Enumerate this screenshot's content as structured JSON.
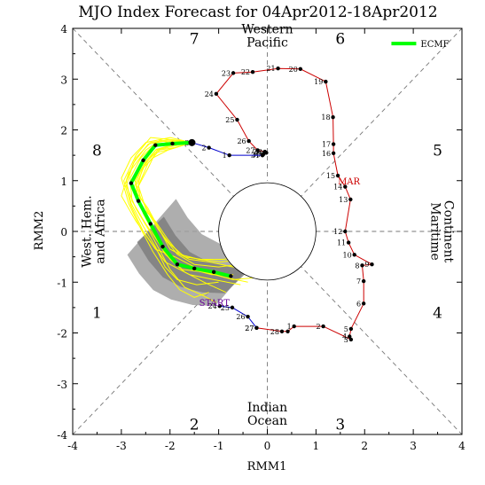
{
  "chart_data": {
    "type": "scatter",
    "title": "MJO Index Forecast for 04Apr2012-18Apr2012",
    "xlabel": "RMM1",
    "ylabel": "RMM2",
    "xlim": [
      -4,
      4
    ],
    "ylim": [
      -4,
      4
    ],
    "x_ticks": [
      "-4",
      "-3",
      "-2",
      "-1",
      "0",
      "1",
      "2",
      "3",
      "4"
    ],
    "y_ticks": [
      "-4",
      "-3",
      "-2",
      "-1",
      "0",
      "1",
      "2",
      "3",
      "4"
    ],
    "grid": false,
    "legend_position": "top-right",
    "legend": [
      {
        "name": "ECMF",
        "color": "#00ff00"
      }
    ],
    "phase_numbers": [
      {
        "label": "1",
        "x": -3.5,
        "y": -1.6
      },
      {
        "label": "2",
        "x": -1.5,
        "y": -3.8
      },
      {
        "label": "3",
        "x": 1.5,
        "y": -3.8
      },
      {
        "label": "4",
        "x": 3.5,
        "y": -1.6
      },
      {
        "label": "5",
        "x": 3.5,
        "y": 1.6
      },
      {
        "label": "6",
        "x": 1.5,
        "y": 3.8
      },
      {
        "label": "7",
        "x": -1.5,
        "y": 3.8
      },
      {
        "label": "8",
        "x": -3.5,
        "y": 1.6
      }
    ],
    "region_labels": [
      {
        "lines": [
          "Western",
          "Pacific"
        ],
        "x": 0.0,
        "y": 3.9,
        "orient": "h"
      },
      {
        "lines": [
          "Indian",
          "Ocean"
        ],
        "x": 0.0,
        "y": -3.55,
        "orient": "h"
      },
      {
        "lines": [
          "West. Hem.",
          "and Africa"
        ],
        "x": -3.5,
        "y": 0.0,
        "orient": "v-left"
      },
      {
        "lines": [
          "Maritime",
          "Continent"
        ],
        "x": 3.5,
        "y": 0.0,
        "orient": "v-right"
      }
    ],
    "month_labels": [
      {
        "text": "MAR",
        "x": 1.45,
        "y": 1.0,
        "color": "#cc0000"
      },
      {
        "text": "START",
        "x": -1.4,
        "y": -1.4,
        "color": "#660099"
      }
    ],
    "observed_track": {
      "color": "#cc0000",
      "points": [
        {
          "label": "27",
          "x": -0.22,
          "y": -1.9
        },
        {
          "label": "28",
          "x": 0.3,
          "y": -1.97
        },
        {
          "label": "",
          "x": 0.42,
          "y": -1.97
        },
        {
          "label": "1",
          "x": 0.55,
          "y": -1.87
        },
        {
          "label": "2",
          "x": 1.15,
          "y": -1.87
        },
        {
          "label": "3",
          "x": 1.72,
          "y": -2.13
        },
        {
          "label": "4",
          "x": 1.69,
          "y": -2.07
        },
        {
          "label": "5",
          "x": 1.72,
          "y": -1.92
        },
        {
          "label": "6",
          "x": 1.98,
          "y": -1.42
        },
        {
          "label": "7",
          "x": 1.98,
          "y": -0.98
        },
        {
          "label": "8",
          "x": 1.95,
          "y": -0.67
        },
        {
          "label": "9",
          "x": 2.15,
          "y": -0.65
        },
        {
          "label": "10",
          "x": 1.79,
          "y": -0.46
        },
        {
          "label": "11",
          "x": 1.67,
          "y": -0.22
        },
        {
          "label": "12",
          "x": 1.6,
          "y": 0.0
        },
        {
          "label": "13",
          "x": 1.71,
          "y": 0.63
        },
        {
          "label": "14",
          "x": 1.6,
          "y": 0.88
        },
        {
          "label": "15",
          "x": 1.45,
          "y": 1.1
        },
        {
          "label": "16",
          "x": 1.36,
          "y": 1.54
        },
        {
          "label": "17",
          "x": 1.36,
          "y": 1.72
        },
        {
          "label": "18",
          "x": 1.35,
          "y": 2.25
        },
        {
          "label": "19",
          "x": 1.2,
          "y": 2.95
        },
        {
          "label": "20",
          "x": 0.68,
          "y": 3.2
        },
        {
          "label": "21",
          "x": 0.22,
          "y": 3.21
        },
        {
          "label": "22",
          "x": -0.3,
          "y": 3.14
        },
        {
          "label": "23",
          "x": -0.7,
          "y": 3.12
        },
        {
          "label": "24",
          "x": -1.05,
          "y": 2.71
        },
        {
          "label": "25",
          "x": -0.62,
          "y": 2.2
        },
        {
          "label": "26",
          "x": -0.38,
          "y": 1.78
        },
        {
          "label": "27",
          "x": -0.2,
          "y": 1.6
        },
        {
          "label": "28",
          "x": -0.05,
          "y": 1.57
        },
        {
          "label": "29",
          "x": -0.02,
          "y": 1.55
        },
        {
          "label": "30",
          "x": -0.08,
          "y": 1.52
        },
        {
          "label": "31",
          "x": -0.1,
          "y": 1.5
        }
      ]
    },
    "forecast_link": {
      "color": "#0000cc",
      "points": [
        {
          "label": "",
          "x": -0.1,
          "y": 1.5
        },
        {
          "label": "1",
          "x": -0.78,
          "y": 1.5
        },
        {
          "label": "2",
          "x": -1.2,
          "y": 1.65
        },
        {
          "label": "3",
          "x": -1.55,
          "y": 1.75
        }
      ]
    },
    "start_link": {
      "color": "#0000cc",
      "points": [
        {
          "label": "24",
          "x": -0.98,
          "y": -1.47
        },
        {
          "label": "25",
          "x": -0.72,
          "y": -1.5
        },
        {
          "label": "26",
          "x": -0.4,
          "y": -1.68
        },
        {
          "label": "27",
          "x": -0.22,
          "y": -1.9
        }
      ]
    },
    "ensemble_mean": {
      "name": "ECMF",
      "color": "#00ff00",
      "points": [
        {
          "x": -1.55,
          "y": 1.75
        },
        {
          "x": -1.95,
          "y": 1.73
        },
        {
          "x": -2.3,
          "y": 1.7
        },
        {
          "x": -2.55,
          "y": 1.4
        },
        {
          "x": -2.8,
          "y": 0.95
        },
        {
          "x": -2.65,
          "y": 0.6
        },
        {
          "x": -2.4,
          "y": 0.15
        },
        {
          "x": -2.15,
          "y": -0.3
        },
        {
          "x": -1.85,
          "y": -0.65
        },
        {
          "x": -1.5,
          "y": -0.73
        },
        {
          "x": -1.1,
          "y": -0.8
        },
        {
          "x": -0.75,
          "y": -0.88
        }
      ]
    },
    "ensemble_members": [
      [
        [
          -1.55,
          1.75
        ],
        [
          -1.9,
          1.8
        ],
        [
          -2.4,
          1.85
        ],
        [
          -2.7,
          1.5
        ],
        [
          -2.95,
          1.0
        ],
        [
          -2.8,
          0.5
        ],
        [
          -2.55,
          0.0
        ],
        [
          -2.3,
          -0.35
        ],
        [
          -1.9,
          -0.5
        ],
        [
          -1.4,
          -0.75
        ],
        [
          -0.9,
          -0.9
        ],
        [
          -0.4,
          -1.0
        ]
      ],
      [
        [
          -1.55,
          1.75
        ],
        [
          -2.0,
          1.62
        ],
        [
          -2.3,
          1.55
        ],
        [
          -2.45,
          1.25
        ],
        [
          -2.7,
          0.8
        ],
        [
          -2.55,
          0.35
        ],
        [
          -2.3,
          -0.1
        ],
        [
          -2.1,
          -0.45
        ],
        [
          -1.75,
          -0.75
        ],
        [
          -1.3,
          -0.8
        ],
        [
          -0.7,
          -0.95
        ],
        [
          -0.1,
          -0.9
        ]
      ],
      [
        [
          -1.55,
          1.75
        ],
        [
          -1.95,
          1.72
        ],
        [
          -2.2,
          1.8
        ],
        [
          -2.5,
          1.6
        ],
        [
          -2.85,
          1.15
        ],
        [
          -3.0,
          0.7
        ],
        [
          -2.7,
          0.2
        ],
        [
          -2.4,
          -0.2
        ],
        [
          -2.1,
          -0.6
        ],
        [
          -1.6,
          -0.85
        ],
        [
          -1.1,
          -0.95
        ],
        [
          -0.55,
          -1.05
        ]
      ],
      [
        [
          -1.55,
          1.75
        ],
        [
          -2.05,
          1.6
        ],
        [
          -2.35,
          1.45
        ],
        [
          -2.6,
          1.2
        ],
        [
          -2.75,
          0.85
        ],
        [
          -2.45,
          0.45
        ],
        [
          -2.2,
          0.0
        ],
        [
          -2.0,
          -0.35
        ],
        [
          -1.6,
          -0.55
        ],
        [
          -1.2,
          -0.6
        ],
        [
          -0.7,
          -0.7
        ],
        [
          -0.2,
          -0.75
        ]
      ],
      [
        [
          -1.55,
          1.75
        ],
        [
          -2.1,
          1.78
        ],
        [
          -2.45,
          1.72
        ],
        [
          -2.75,
          1.35
        ],
        [
          -2.9,
          0.9
        ],
        [
          -2.7,
          0.45
        ],
        [
          -2.45,
          0.05
        ],
        [
          -2.25,
          -0.3
        ],
        [
          -2.0,
          -0.75
        ],
        [
          -1.7,
          -1.1
        ],
        [
          -1.35,
          -1.25
        ],
        [
          -1.05,
          -1.4
        ]
      ],
      [
        [
          -1.55,
          1.75
        ],
        [
          -1.9,
          1.65
        ],
        [
          -2.25,
          1.6
        ],
        [
          -2.55,
          1.3
        ],
        [
          -2.65,
          0.95
        ],
        [
          -2.6,
          0.5
        ],
        [
          -2.3,
          0.2
        ],
        [
          -2.05,
          -0.15
        ],
        [
          -1.8,
          -0.45
        ],
        [
          -1.4,
          -0.55
        ],
        [
          -0.95,
          -0.6
        ],
        [
          -0.45,
          -0.55
        ]
      ],
      [
        [
          -1.55,
          1.75
        ],
        [
          -2.0,
          1.85
        ],
        [
          -2.5,
          1.75
        ],
        [
          -2.8,
          1.45
        ],
        [
          -3.0,
          1.05
        ],
        [
          -2.85,
          0.55
        ],
        [
          -2.6,
          0.05
        ],
        [
          -2.35,
          -0.4
        ],
        [
          -2.05,
          -0.85
        ],
        [
          -1.8,
          -1.15
        ],
        [
          -1.5,
          -1.3
        ],
        [
          -1.2,
          -1.2
        ]
      ],
      [
        [
          -1.55,
          1.75
        ],
        [
          -1.98,
          1.7
        ],
        [
          -2.28,
          1.62
        ],
        [
          -2.5,
          1.38
        ],
        [
          -2.72,
          1.0
        ],
        [
          -2.6,
          0.65
        ],
        [
          -2.35,
          0.25
        ],
        [
          -2.1,
          -0.15
        ],
        [
          -1.85,
          -0.45
        ],
        [
          -1.5,
          -0.65
        ],
        [
          -1.0,
          -0.7
        ],
        [
          -0.6,
          -0.65
        ]
      ],
      [
        [
          -1.55,
          1.75
        ],
        [
          -2.02,
          1.75
        ],
        [
          -2.35,
          1.68
        ],
        [
          -2.6,
          1.45
        ],
        [
          -2.82,
          1.05
        ],
        [
          -2.78,
          0.6
        ],
        [
          -2.5,
          0.15
        ],
        [
          -2.25,
          -0.2
        ],
        [
          -2.0,
          -0.55
        ],
        [
          -1.7,
          -0.8
        ],
        [
          -1.3,
          -1.0
        ],
        [
          -0.85,
          -1.2
        ]
      ],
      [
        [
          -1.55,
          1.75
        ],
        [
          -1.92,
          1.68
        ],
        [
          -2.2,
          1.62
        ],
        [
          -2.45,
          1.35
        ],
        [
          -2.65,
          0.9
        ],
        [
          -2.5,
          0.45
        ],
        [
          -2.25,
          0.05
        ],
        [
          -2.0,
          -0.25
        ],
        [
          -1.7,
          -0.5
        ],
        [
          -1.35,
          -0.55
        ],
        [
          -0.9,
          -0.55
        ],
        [
          -0.35,
          -0.45
        ]
      ],
      [
        [
          -1.55,
          1.75
        ],
        [
          -2.05,
          1.8
        ],
        [
          -2.4,
          1.75
        ],
        [
          -2.7,
          1.45
        ],
        [
          -2.9,
          1.0
        ],
        [
          -2.8,
          0.55
        ],
        [
          -2.55,
          0.1
        ],
        [
          -2.3,
          -0.3
        ],
        [
          -2.1,
          -0.7
        ],
        [
          -1.85,
          -0.95
        ],
        [
          -1.45,
          -1.05
        ],
        [
          -1.0,
          -1.0
        ]
      ],
      [
        [
          -1.55,
          1.75
        ],
        [
          -1.95,
          1.7
        ],
        [
          -2.3,
          1.6
        ],
        [
          -2.52,
          1.3
        ],
        [
          -2.7,
          0.9
        ],
        [
          -2.62,
          0.5
        ],
        [
          -2.38,
          0.12
        ],
        [
          -2.15,
          -0.25
        ],
        [
          -1.9,
          -0.6
        ],
        [
          -1.55,
          -0.75
        ],
        [
          -1.15,
          -0.85
        ],
        [
          -0.7,
          -0.85
        ]
      ]
    ]
  }
}
